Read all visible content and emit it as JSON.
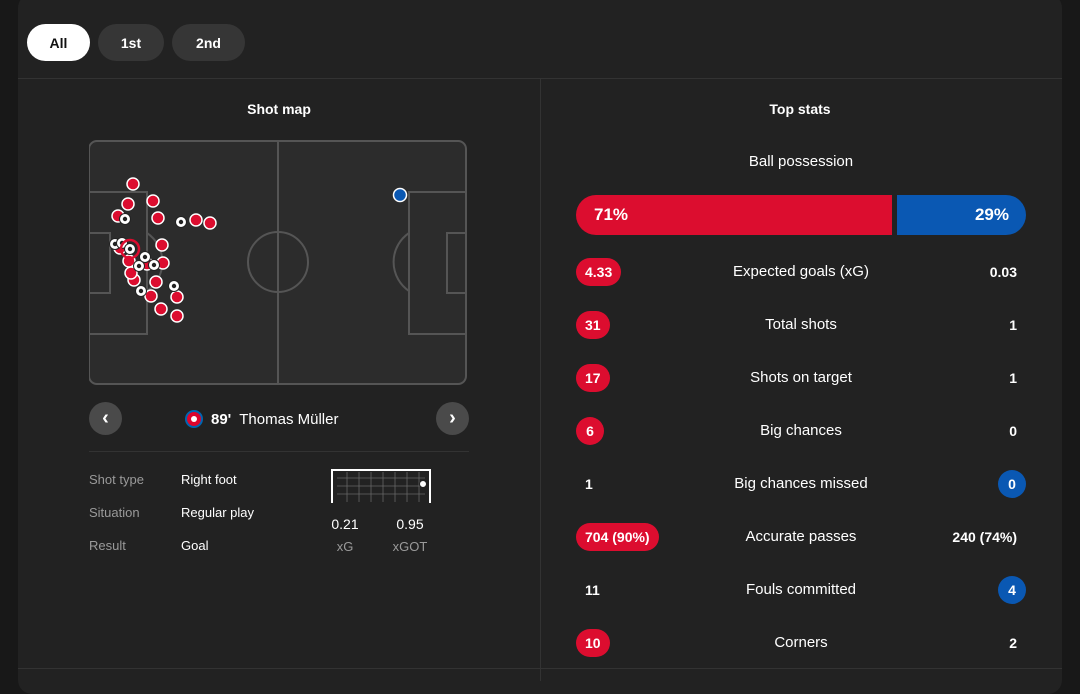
{
  "colors": {
    "home": "#dc0d2f",
    "away": "#0a58b3",
    "panel": "#222222"
  },
  "period_tabs": [
    {
      "label": "All",
      "active": true
    },
    {
      "label": "1st",
      "active": false
    },
    {
      "label": "2nd",
      "active": false
    }
  ],
  "shot_map": {
    "title": "Shot map",
    "selected_shot": {
      "minute": "89'",
      "player": "Thomas Müller",
      "team_icon": "fc-bayern-crest-icon",
      "details": [
        {
          "label": "Shot type",
          "value": "Right foot"
        },
        {
          "label": "Situation",
          "value": "Regular play"
        },
        {
          "label": "Result",
          "value": "Goal"
        }
      ],
      "xg": "0.21",
      "xg_label": "xG",
      "xgot": "0.95",
      "xgot_label": "xGOT"
    },
    "prev_icon": "chevron-left-icon",
    "next_icon": "chevron-right-icon"
  },
  "top_stats": {
    "title": "Top stats",
    "possession": {
      "label": "Ball possession",
      "home": "71%",
      "away": "29%",
      "home_fraction": 0.71
    },
    "rows": [
      {
        "name": "Expected goals (xG)",
        "home": "4.33",
        "away": "0.03",
        "highlight": "home"
      },
      {
        "name": "Total shots",
        "home": "31",
        "away": "1",
        "highlight": "home"
      },
      {
        "name": "Shots on target",
        "home": "17",
        "away": "1",
        "highlight": "home"
      },
      {
        "name": "Big chances",
        "home": "6",
        "away": "0",
        "highlight": "home"
      },
      {
        "name": "Big chances missed",
        "home": "1",
        "away": "0",
        "highlight": "away"
      },
      {
        "name": "Accurate passes",
        "home": "704 (90%)",
        "away": "240 (74%)",
        "highlight": "home"
      },
      {
        "name": "Fouls committed",
        "home": "11",
        "away": "4",
        "highlight": "away"
      },
      {
        "name": "Corners",
        "home": "10",
        "away": "2",
        "highlight": "home"
      }
    ]
  }
}
